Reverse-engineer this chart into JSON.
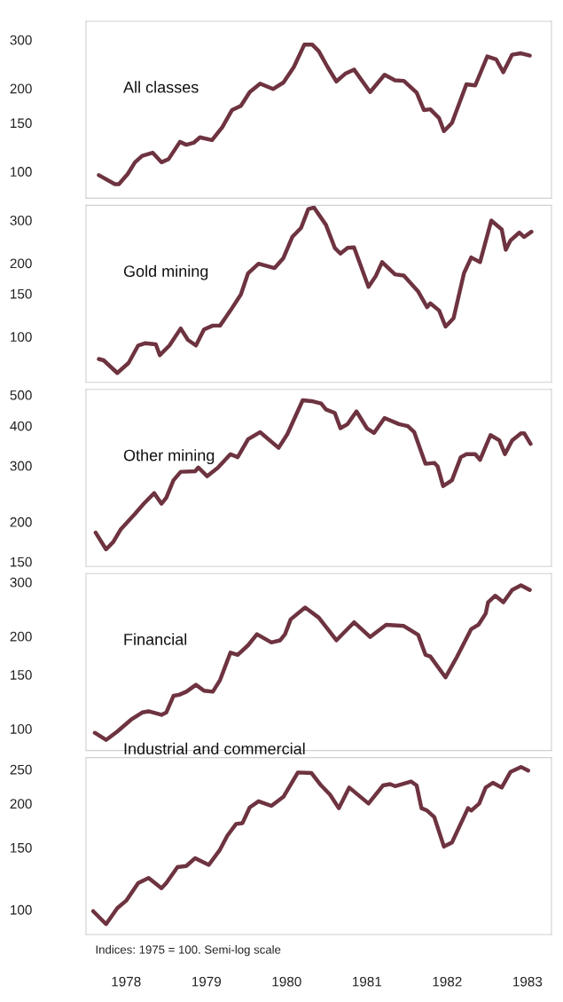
{
  "chart_data": [
    {
      "type": "line",
      "title": "All classes",
      "log": "y",
      "ylim": [
        80,
        350
      ],
      "yticks": [
        100,
        150,
        200,
        300
      ],
      "xlim": [
        1978,
        1983.8
      ],
      "tick_labels": "y",
      "series": [
        {
          "color": "#6e3340",
          "x": [
            1978.16,
            1978.36,
            1978.41,
            1978.52,
            1978.61,
            1978.7,
            1978.83,
            1978.94,
            1979.03,
            1979.17,
            1979.25,
            1979.34,
            1979.42,
            1979.57,
            1979.7,
            1979.82,
            1979.93,
            1980.04,
            1980.17,
            1980.33,
            1980.46,
            1980.59,
            1980.72,
            1980.82,
            1980.9,
            1981.01,
            1981.12,
            1981.23,
            1981.34,
            1981.54,
            1981.72,
            1981.85,
            1981.96,
            1982.12,
            1982.21,
            1982.29,
            1982.4,
            1982.46,
            1982.56,
            1982.74,
            1982.85,
            1983.0,
            1983.11,
            1983.2,
            1983.31,
            1983.42,
            1983.53
          ],
          "values": [
            97,
            90,
            90,
            98,
            108,
            114,
            117,
            108,
            111,
            128,
            125,
            127,
            133,
            130,
            145,
            167,
            173,
            194,
            208,
            199,
            210,
            239,
            288,
            288,
            273,
            239,
            212,
            226,
            234,
            194,
            224,
            214,
            213,
            193,
            167,
            168,
            156,
            140,
            150,
            207,
            205,
            261,
            255,
            229,
            265,
            268,
            263
          ]
        }
      ]
    },
    {
      "type": "line",
      "title": "Gold mining",
      "log": "y",
      "ylim": [
        65,
        345
      ],
      "yticks": [
        100,
        150,
        200,
        300
      ],
      "xlim": [
        1978,
        1983.8
      ],
      "tick_labels": "y",
      "series": [
        {
          "color": "#6e3340",
          "x": [
            1978.16,
            1978.22,
            1978.39,
            1978.53,
            1978.65,
            1978.74,
            1978.87,
            1978.92,
            1979.04,
            1979.18,
            1979.27,
            1979.37,
            1979.47,
            1979.58,
            1979.67,
            1979.8,
            1979.93,
            1980.02,
            1980.15,
            1980.35,
            1980.46,
            1980.57,
            1980.68,
            1980.77,
            1980.84,
            1980.99,
            1981.1,
            1981.17,
            1981.26,
            1981.34,
            1981.52,
            1981.61,
            1981.69,
            1981.85,
            1981.96,
            1982.14,
            1982.25,
            1982.29,
            1982.4,
            1982.48,
            1982.58,
            1982.71,
            1982.8,
            1982.91,
            1983.05,
            1983.18,
            1983.23,
            1983.29,
            1983.4,
            1983.46,
            1983.55
          ],
          "values": [
            81,
            80,
            71,
            78,
            92,
            94,
            93,
            84,
            92,
            108,
            97,
            92,
            107,
            111,
            111,
            128,
            149,
            182,
            199,
            191,
            210,
            256,
            279,
            333,
            338,
            287,
            231,
            219,
            231,
            232,
            160,
            177,
            202,
            180,
            178,
            153,
            132,
            137,
            128,
            110,
            119,
            182,
            211,
            202,
            299,
            275,
            227,
            248,
            267,
            256,
            269
          ]
        }
      ]
    },
    {
      "type": "line",
      "title": "Other mining",
      "log": "y",
      "ylim": [
        145,
        520
      ],
      "yticks": [
        150,
        200,
        300,
        400,
        500
      ],
      "xlim": [
        1978,
        1983.8
      ],
      "tick_labels": "y",
      "series": [
        {
          "color": "#6e3340",
          "x": [
            1978.12,
            1978.25,
            1978.34,
            1978.43,
            1978.61,
            1978.72,
            1978.85,
            1978.94,
            1979.0,
            1979.09,
            1979.18,
            1979.36,
            1979.4,
            1979.51,
            1979.64,
            1979.8,
            1979.89,
            1980.02,
            1980.17,
            1980.4,
            1980.51,
            1980.7,
            1980.81,
            1980.93,
            1980.99,
            1981.1,
            1981.17,
            1981.26,
            1981.37,
            1981.5,
            1981.59,
            1981.72,
            1981.9,
            1982.01,
            1982.09,
            1982.23,
            1982.34,
            1982.38,
            1982.45,
            1982.56,
            1982.67,
            1982.74,
            1982.85,
            1982.91,
            1983.04,
            1983.15,
            1983.22,
            1983.31,
            1983.42,
            1983.46,
            1983.54
          ],
          "values": [
            185,
            164,
            173,
            189,
            212,
            228,
            246,
            228,
            238,
            270,
            287,
            288,
            296,
            278,
            295,
            326,
            319,
            363,
            382,
            341,
            377,
            481,
            478,
            470,
            450,
            439,
            393,
            405,
            444,
            393,
            380,
            423,
            405,
            399,
            382,
            304,
            306,
            299,
            259,
            270,
            319,
            326,
            326,
            313,
            374,
            360,
            326,
            360,
            379,
            379,
            351
          ]
        }
      ]
    },
    {
      "type": "line",
      "title": "Financial",
      "log": "y",
      "ylim": [
        85,
        320
      ],
      "yticks": [
        100,
        150,
        200,
        300
      ],
      "xlim": [
        1978,
        1983.8
      ],
      "tick_labels": "y",
      "series": [
        {
          "color": "#6e3340",
          "x": [
            1978.11,
            1978.25,
            1978.39,
            1978.56,
            1978.7,
            1978.78,
            1978.94,
            1979.0,
            1979.09,
            1979.16,
            1979.25,
            1979.37,
            1979.47,
            1979.58,
            1979.67,
            1979.8,
            1979.89,
            1980.02,
            1980.13,
            1980.31,
            1980.42,
            1980.48,
            1980.55,
            1980.73,
            1980.9,
            1981.12,
            1981.34,
            1981.54,
            1981.74,
            1981.96,
            1982.14,
            1982.23,
            1982.29,
            1982.48,
            1982.62,
            1982.8,
            1982.89,
            1982.98,
            1983.01,
            1983.1,
            1983.2,
            1983.31,
            1983.42,
            1983.53
          ],
          "values": [
            97,
            92,
            98,
            107,
            113,
            114,
            111,
            113,
            128,
            129,
            132,
            139,
            133,
            132,
            144,
            177,
            174,
            187,
            203,
            191,
            194,
            203,
            227,
            248,
            230,
            194,
            222,
            199,
            218,
            216,
            202,
            174,
            172,
            147,
            171,
            211,
            218,
            237,
            258,
            271,
            258,
            283,
            293,
            283
          ]
        }
      ]
    },
    {
      "type": "line",
      "title": "Industrial and commercial",
      "log": "y",
      "ylim": [
        85,
        270
      ],
      "yticks": [
        100,
        150,
        200,
        250
      ],
      "xlim": [
        1978,
        1983.8
      ],
      "xticks": [
        {
          "value": 1978.5,
          "label": "1978"
        },
        {
          "value": 1979.5,
          "label": "1979"
        },
        {
          "value": 1980.5,
          "label": "1980"
        },
        {
          "value": 1981.5,
          "label": "1981"
        },
        {
          "value": 1982.5,
          "label": "1982"
        },
        {
          "value": 1983.5,
          "label": "1983"
        }
      ],
      "annotations": [
        "Indices: 1975 = 100. Semi-log scale"
      ],
      "series": [
        {
          "color": "#6e3340",
          "x": [
            1978.09,
            1978.25,
            1978.39,
            1978.5,
            1978.65,
            1978.78,
            1978.94,
            1979.0,
            1979.14,
            1979.25,
            1979.36,
            1979.53,
            1979.67,
            1979.76,
            1979.87,
            1979.95,
            1980.04,
            1980.15,
            1980.31,
            1980.46,
            1980.64,
            1980.81,
            1980.93,
            1981.04,
            1981.15,
            1981.28,
            1981.52,
            1981.7,
            1981.79,
            1981.85,
            1982.05,
            1982.12,
            1982.18,
            1982.25,
            1982.34,
            1982.46,
            1982.56,
            1982.76,
            1982.8,
            1982.9,
            1982.98,
            1983.07,
            1983.18,
            1983.29,
            1983.42,
            1983.51
          ],
          "values": [
            99,
            91,
            101,
            106,
            119,
            123,
            115,
            119,
            132,
            133,
            140,
            134,
            148,
            162,
            175,
            176,
            195,
            203,
            197,
            209,
            245,
            244,
            225,
            212,
            194,
            222,
            200,
            225,
            227,
            224,
            231,
            225,
            194,
            191,
            183,
            151,
            155,
            194,
            191,
            200,
            222,
            229,
            222,
            246,
            254,
            248
          ]
        }
      ]
    }
  ]
}
